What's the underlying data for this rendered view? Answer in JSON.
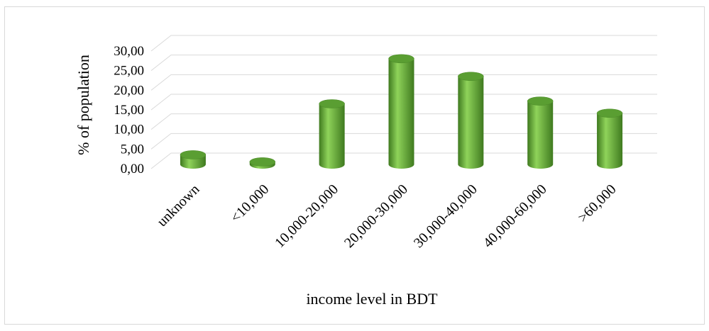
{
  "chart_data": {
    "type": "bar",
    "categories": [
      "unknown",
      "<10,000",
      "10,000-20,000",
      "20,000-30,000",
      "30,000-40,000",
      "40,000-60,000",
      ">60,000"
    ],
    "values": [
      3.0,
      1.2,
      16.0,
      27.5,
      23.0,
      16.7,
      13.6
    ],
    "xlabel": "income level in BDT",
    "ylabel": "% of population",
    "ylim": [
      0,
      30
    ],
    "yticks": [
      "0,00",
      "5,00",
      "10,00",
      "15,00",
      "20,00",
      "25,00",
      "30,00"
    ],
    "grid": true,
    "bar_color": "#5a9e32"
  }
}
